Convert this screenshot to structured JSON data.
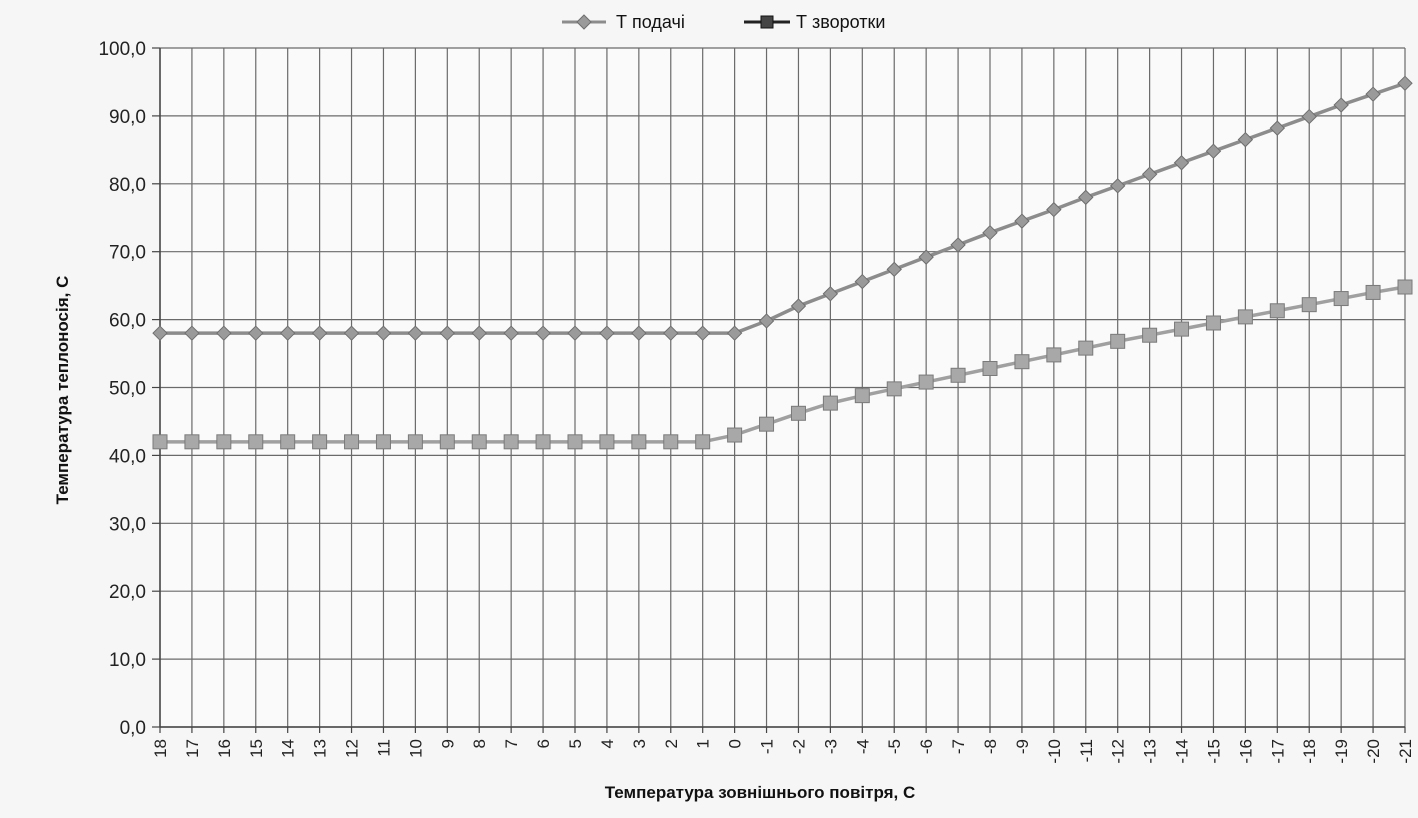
{
  "chart_data": {
    "type": "line",
    "title": "",
    "xlabel": "Температура зовнішнього повітря, С",
    "ylabel": "Температура теплоносія, С",
    "ylim": [
      0,
      100
    ],
    "y_ticks": [
      "0,0",
      "10,0",
      "20,0",
      "30,0",
      "40,0",
      "50,0",
      "60,0",
      "70,0",
      "80,0",
      "90,0",
      "100,0"
    ],
    "grid": true,
    "legend_position": "top",
    "categories": [
      "18",
      "17",
      "16",
      "15",
      "14",
      "13",
      "12",
      "11",
      "10",
      "9",
      "8",
      "7",
      "6",
      "5",
      "4",
      "3",
      "2",
      "1",
      "0",
      "-1",
      "-2",
      "-3",
      "-4",
      "-5",
      "-6",
      "-7",
      "-8",
      "-9",
      "-10",
      "-11",
      "-12",
      "-13",
      "-14",
      "-15",
      "-16",
      "-17",
      "-18",
      "-19",
      "-20",
      "-21"
    ],
    "series": [
      {
        "name": "Т подачі",
        "marker": "diamond",
        "color": "#8c8c8c",
        "values": [
          58,
          58,
          58,
          58,
          58,
          58,
          58,
          58,
          58,
          58,
          58,
          58,
          58,
          58,
          58,
          58,
          58,
          58,
          58,
          59.8,
          62,
          63.8,
          65.6,
          67.4,
          69.2,
          71,
          72.8,
          74.5,
          76.2,
          78,
          79.7,
          81.4,
          83.1,
          84.8,
          86.5,
          88.2,
          89.9,
          91.6,
          93.2,
          94.8
        ]
      },
      {
        "name": "Т зворотки",
        "marker": "square",
        "color": "#a0a0a0",
        "values": [
          42,
          42,
          42,
          42,
          42,
          42,
          42,
          42,
          42,
          42,
          42,
          42,
          42,
          42,
          42,
          42,
          42,
          42,
          43,
          44.6,
          46.2,
          47.7,
          48.8,
          49.8,
          50.8,
          51.8,
          52.8,
          53.8,
          54.8,
          55.8,
          56.8,
          57.7,
          58.6,
          59.5,
          60.4,
          61.3,
          62.2,
          63.1,
          64,
          64.8
        ]
      }
    ]
  }
}
